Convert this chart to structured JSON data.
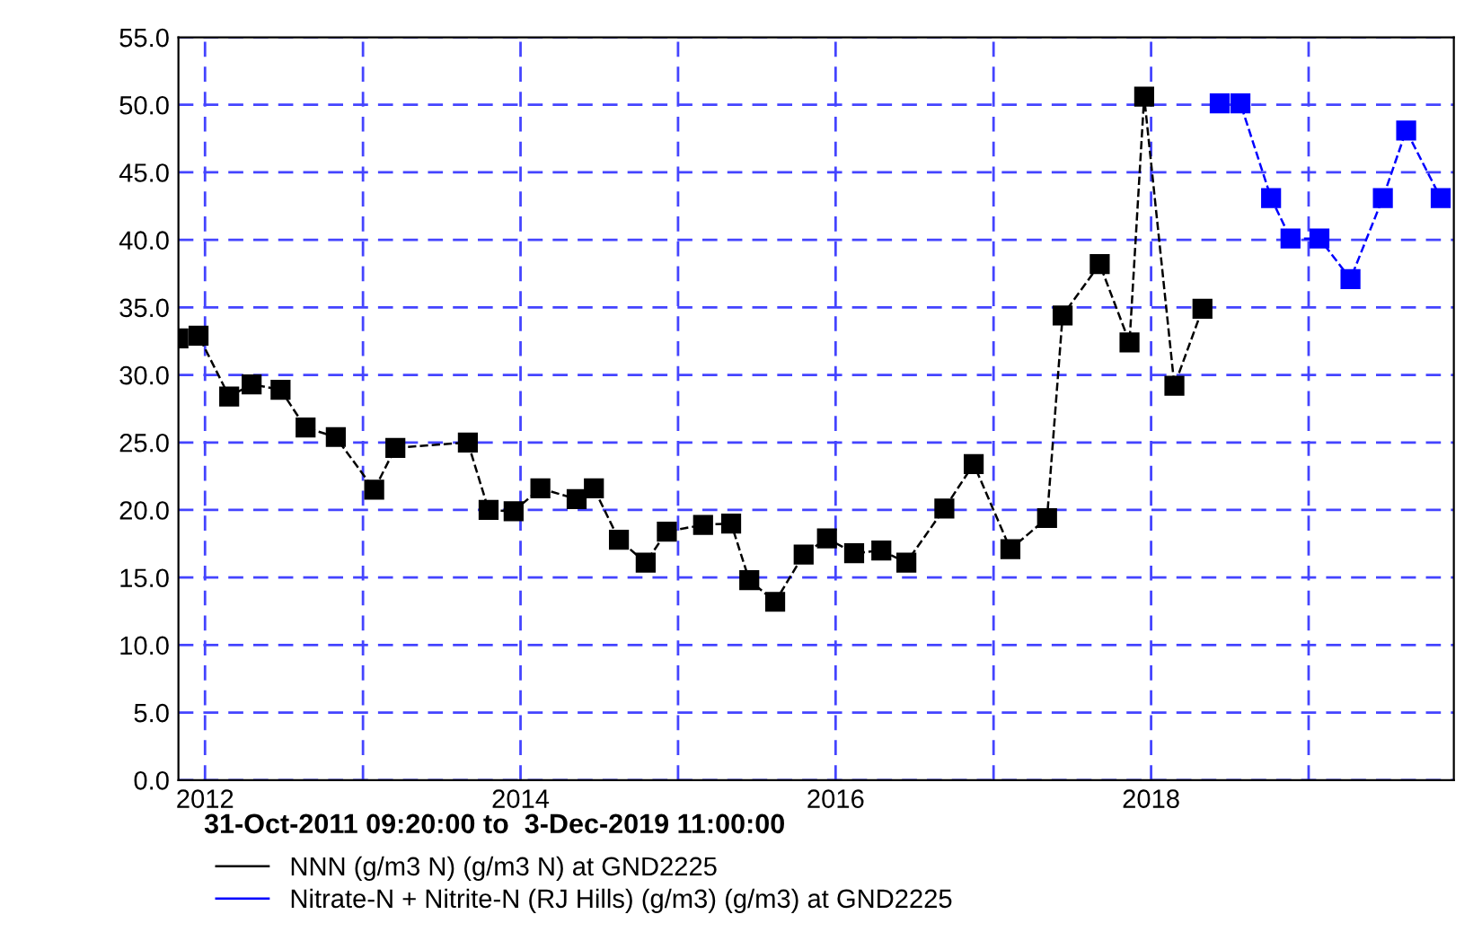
{
  "chart_data": {
    "type": "line",
    "xlabel": "31-Oct-2011 09:20:00 to  3-Dec-2019 11:00:00",
    "xlim": [
      "2011-10-31T09:20",
      "2019-12-03T11:00"
    ],
    "xticks": [
      {
        "value": "2012-01-01",
        "label": "2012"
      },
      {
        "value": "2013-01-01",
        "label": null
      },
      {
        "value": "2014-01-01",
        "label": "2014"
      },
      {
        "value": "2015-01-01",
        "label": null
      },
      {
        "value": "2016-01-01",
        "label": "2016"
      },
      {
        "value": "2017-01-01",
        "label": null
      },
      {
        "value": "2018-01-01",
        "label": "2018"
      },
      {
        "value": "2019-01-01",
        "label": null
      }
    ],
    "ylim": [
      0,
      55
    ],
    "yticks": [
      {
        "value": 0,
        "label": "0.0"
      },
      {
        "value": 5,
        "label": "5.0"
      },
      {
        "value": 10,
        "label": "10.0"
      },
      {
        "value": 15,
        "label": "15.0"
      },
      {
        "value": 20,
        "label": "20.0"
      },
      {
        "value": 25,
        "label": "25.0"
      },
      {
        "value": 30,
        "label": "30.0"
      },
      {
        "value": 35,
        "label": "35.0"
      },
      {
        "value": 40,
        "label": "40.0"
      },
      {
        "value": 45,
        "label": "45.0"
      },
      {
        "value": 50,
        "label": "50.0"
      },
      {
        "value": 55,
        "label": "55.0"
      }
    ],
    "grid": true,
    "legend": "bottom",
    "marker": "square",
    "line_style": "dashed",
    "series": [
      {
        "name": "NNN (g/m3 N) (g/m3 N) at GND2225",
        "color": "#000000",
        "x": [
          "2011-10-31T09:20",
          "2011-12-17",
          "2012-02-26",
          "2012-04-18",
          "2012-06-24",
          "2012-08-21",
          "2012-10-30",
          "2013-01-27",
          "2013-03-17",
          "2013-09-01",
          "2013-10-19",
          "2013-12-16",
          "2014-02-16",
          "2014-05-11",
          "2014-06-20",
          "2014-08-17",
          "2014-10-18",
          "2014-12-06",
          "2015-02-28",
          "2015-05-04",
          "2015-06-15",
          "2015-08-14",
          "2015-10-19",
          "2015-12-12",
          "2016-02-13",
          "2016-04-16",
          "2016-06-13",
          "2016-09-09",
          "2016-11-16",
          "2017-02-09",
          "2017-05-05",
          "2017-06-10",
          "2017-09-04",
          "2017-11-12",
          "2017-12-16",
          "2018-02-24",
          "2018-04-30"
        ],
        "values": [
          32.7,
          32.9,
          28.4,
          29.3,
          28.9,
          26.1,
          25.4,
          21.5,
          24.6,
          25.0,
          20.0,
          19.9,
          21.6,
          20.8,
          21.6,
          17.8,
          16.1,
          18.4,
          18.9,
          19.0,
          14.8,
          13.2,
          16.7,
          17.9,
          16.8,
          17.0,
          16.1,
          20.1,
          23.4,
          17.1,
          19.4,
          34.4,
          38.2,
          32.4,
          50.6,
          29.2,
          34.9
        ]
      },
      {
        "name": "Nitrate-N + Nitrite-N (RJ Hills) (g/m3) (g/m3) at GND2225",
        "color": "#0000ff",
        "x": [
          "2018-06-09",
          "2018-07-27",
          "2018-10-06",
          "2018-11-20",
          "2019-01-26",
          "2019-04-08",
          "2019-06-22",
          "2019-08-15",
          "2019-11-03"
        ],
        "values": [
          50.1,
          50.1,
          43.1,
          40.1,
          40.1,
          37.1,
          43.1,
          48.1,
          43.1
        ]
      }
    ]
  }
}
